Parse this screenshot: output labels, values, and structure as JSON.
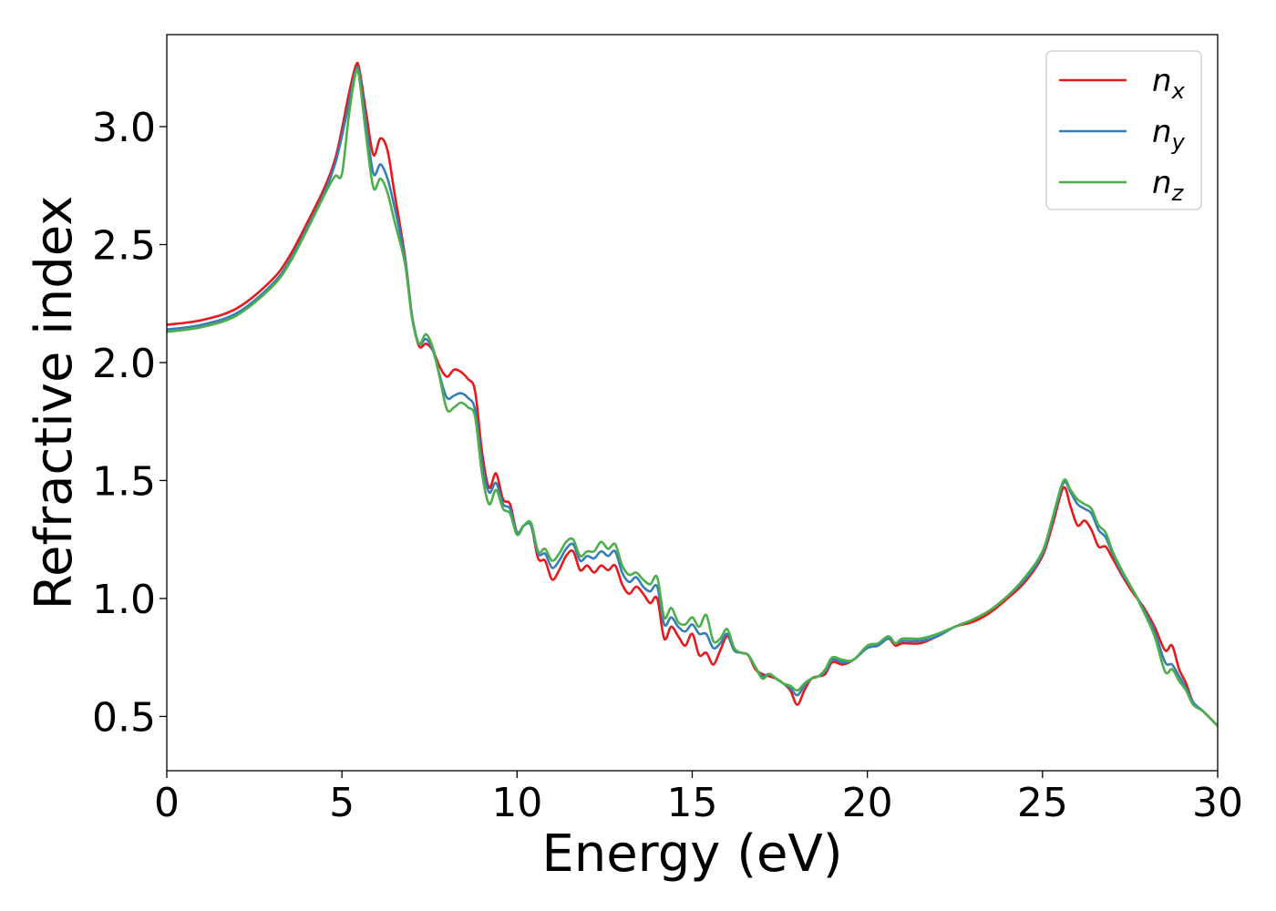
{
  "chart_data": {
    "type": "line",
    "xlabel": "Energy (eV)",
    "ylabel": "Refractive index",
    "xlim": [
      0,
      30
    ],
    "ylim": [
      0.27,
      3.39
    ],
    "xticks": [
      "0",
      "5",
      "10",
      "15",
      "20",
      "25",
      "30"
    ],
    "yticks": [
      "0.5",
      "1.0",
      "1.5",
      "2.0",
      "2.5",
      "3.0"
    ],
    "grid": false,
    "legend_position": "top-right",
    "series": [
      {
        "name": "n",
        "subscript": "x",
        "color": "#e41a1c",
        "x": [
          0,
          1,
          2,
          3,
          3.5,
          4,
          4.5,
          4.8,
          5.0,
          5.2,
          5.4,
          5.5,
          5.7,
          5.9,
          6.1,
          6.3,
          6.5,
          6.8,
          7.0,
          7.2,
          7.4,
          7.6,
          7.8,
          8.0,
          8.2,
          8.4,
          8.6,
          8.8,
          9.0,
          9.2,
          9.4,
          9.6,
          9.8,
          10.0,
          10.2,
          10.4,
          10.6,
          10.8,
          11.0,
          11.2,
          11.4,
          11.6,
          11.8,
          12.0,
          12.2,
          12.4,
          12.6,
          12.8,
          13.0,
          13.2,
          13.4,
          13.6,
          13.8,
          14.0,
          14.2,
          14.4,
          14.6,
          14.8,
          15.0,
          15.2,
          15.4,
          15.6,
          15.8,
          16.0,
          16.2,
          16.4,
          16.6,
          16.8,
          17.0,
          17.2,
          17.4,
          17.6,
          17.8,
          18.0,
          18.2,
          18.4,
          18.6,
          18.8,
          19.0,
          19.3,
          19.6,
          20.0,
          20.3,
          20.6,
          20.8,
          21.0,
          21.5,
          22.0,
          22.5,
          23.0,
          23.5,
          24.0,
          24.5,
          25.0,
          25.3,
          25.6,
          25.8,
          26.0,
          26.2,
          26.4,
          26.6,
          26.8,
          27.0,
          27.3,
          27.6,
          27.9,
          28.2,
          28.5,
          28.7,
          28.9,
          29.1,
          29.3,
          29.6,
          30.0
        ],
        "values": [
          2.16,
          2.18,
          2.23,
          2.35,
          2.45,
          2.59,
          2.74,
          2.86,
          2.99,
          3.14,
          3.26,
          3.24,
          3.05,
          2.88,
          2.95,
          2.9,
          2.72,
          2.45,
          2.2,
          2.07,
          2.08,
          2.05,
          1.98,
          1.94,
          1.97,
          1.96,
          1.93,
          1.88,
          1.62,
          1.47,
          1.53,
          1.42,
          1.4,
          1.28,
          1.31,
          1.31,
          1.17,
          1.16,
          1.08,
          1.12,
          1.18,
          1.2,
          1.12,
          1.14,
          1.11,
          1.14,
          1.12,
          1.14,
          1.06,
          1.02,
          1.05,
          1.02,
          0.98,
          1.0,
          0.83,
          0.88,
          0.84,
          0.8,
          0.85,
          0.76,
          0.77,
          0.72,
          0.78,
          0.84,
          0.78,
          0.77,
          0.76,
          0.7,
          0.68,
          0.67,
          0.66,
          0.64,
          0.61,
          0.55,
          0.61,
          0.66,
          0.67,
          0.68,
          0.73,
          0.72,
          0.74,
          0.79,
          0.8,
          0.83,
          0.8,
          0.81,
          0.81,
          0.84,
          0.88,
          0.9,
          0.94,
          1.0,
          1.07,
          1.18,
          1.32,
          1.47,
          1.39,
          1.31,
          1.33,
          1.29,
          1.22,
          1.22,
          1.17,
          1.09,
          1.02,
          0.96,
          0.88,
          0.78,
          0.8,
          0.7,
          0.64,
          0.56,
          0.52,
          0.46
        ]
      },
      {
        "name": "n",
        "subscript": "y",
        "color": "#377eb8",
        "x": [
          0,
          1,
          2,
          3,
          3.5,
          4,
          4.5,
          4.8,
          5.0,
          5.2,
          5.4,
          5.5,
          5.7,
          5.9,
          6.1,
          6.3,
          6.5,
          6.8,
          7.0,
          7.2,
          7.4,
          7.6,
          7.8,
          8.0,
          8.2,
          8.4,
          8.6,
          8.8,
          9.0,
          9.2,
          9.4,
          9.6,
          9.8,
          10.0,
          10.2,
          10.4,
          10.6,
          10.8,
          11.0,
          11.2,
          11.4,
          11.6,
          11.8,
          12.0,
          12.2,
          12.4,
          12.6,
          12.8,
          13.0,
          13.2,
          13.4,
          13.6,
          13.8,
          14.0,
          14.2,
          14.4,
          14.6,
          14.8,
          15.0,
          15.2,
          15.4,
          15.6,
          15.8,
          16.0,
          16.2,
          16.4,
          16.6,
          16.8,
          17.0,
          17.2,
          17.4,
          17.6,
          17.8,
          18.0,
          18.2,
          18.4,
          18.6,
          18.8,
          19.0,
          19.3,
          19.6,
          20.0,
          20.3,
          20.6,
          20.8,
          21.0,
          21.5,
          22.0,
          22.5,
          23.0,
          23.5,
          24.0,
          24.5,
          25.0,
          25.3,
          25.6,
          25.8,
          26.0,
          26.2,
          26.4,
          26.6,
          26.8,
          27.0,
          27.3,
          27.6,
          27.9,
          28.2,
          28.5,
          28.7,
          28.9,
          29.1,
          29.3,
          29.6,
          30.0
        ],
        "values": [
          2.14,
          2.16,
          2.21,
          2.33,
          2.43,
          2.57,
          2.72,
          2.84,
          2.96,
          3.1,
          3.24,
          3.22,
          3.0,
          2.8,
          2.84,
          2.78,
          2.66,
          2.44,
          2.2,
          2.08,
          2.1,
          2.05,
          1.94,
          1.85,
          1.86,
          1.87,
          1.85,
          1.8,
          1.57,
          1.45,
          1.49,
          1.4,
          1.38,
          1.28,
          1.31,
          1.31,
          1.19,
          1.19,
          1.13,
          1.16,
          1.21,
          1.23,
          1.16,
          1.18,
          1.17,
          1.2,
          1.18,
          1.2,
          1.11,
          1.07,
          1.09,
          1.05,
          1.03,
          1.05,
          0.89,
          0.92,
          0.88,
          0.86,
          0.89,
          0.85,
          0.85,
          0.79,
          0.81,
          0.85,
          0.78,
          0.77,
          0.76,
          0.71,
          0.67,
          0.68,
          0.66,
          0.64,
          0.62,
          0.59,
          0.63,
          0.66,
          0.67,
          0.69,
          0.74,
          0.73,
          0.74,
          0.79,
          0.8,
          0.83,
          0.81,
          0.82,
          0.82,
          0.84,
          0.88,
          0.91,
          0.95,
          1.01,
          1.08,
          1.19,
          1.34,
          1.49,
          1.45,
          1.4,
          1.38,
          1.36,
          1.29,
          1.26,
          1.19,
          1.1,
          1.03,
          0.95,
          0.86,
          0.73,
          0.72,
          0.67,
          0.62,
          0.56,
          0.52,
          0.46
        ]
      },
      {
        "name": "n",
        "subscript": "z",
        "color": "#4daf4a",
        "x": [
          0,
          1,
          2,
          3,
          3.5,
          4,
          4.5,
          4.8,
          5.0,
          5.2,
          5.4,
          5.5,
          5.7,
          5.9,
          6.1,
          6.3,
          6.5,
          6.8,
          7.0,
          7.2,
          7.4,
          7.6,
          7.8,
          8.0,
          8.2,
          8.4,
          8.6,
          8.8,
          9.0,
          9.2,
          9.4,
          9.6,
          9.8,
          10.0,
          10.2,
          10.4,
          10.6,
          10.8,
          11.0,
          11.2,
          11.4,
          11.6,
          11.8,
          12.0,
          12.2,
          12.4,
          12.6,
          12.8,
          13.0,
          13.2,
          13.4,
          13.6,
          13.8,
          14.0,
          14.2,
          14.4,
          14.6,
          14.8,
          15.0,
          15.2,
          15.4,
          15.6,
          15.8,
          16.0,
          16.2,
          16.4,
          16.6,
          16.8,
          17.0,
          17.2,
          17.4,
          17.6,
          17.8,
          18.0,
          18.2,
          18.4,
          18.6,
          18.8,
          19.0,
          19.3,
          19.6,
          20.0,
          20.3,
          20.6,
          20.8,
          21.0,
          21.5,
          22.0,
          22.5,
          23.0,
          23.5,
          24.0,
          24.5,
          25.0,
          25.3,
          25.6,
          25.8,
          26.0,
          26.2,
          26.4,
          26.6,
          26.8,
          27.0,
          27.3,
          27.6,
          27.9,
          28.2,
          28.5,
          28.7,
          28.9,
          29.1,
          29.3,
          29.6,
          30.0
        ],
        "values": [
          2.13,
          2.15,
          2.2,
          2.32,
          2.42,
          2.56,
          2.71,
          2.79,
          2.8,
          3.05,
          3.23,
          3.2,
          2.95,
          2.74,
          2.78,
          2.72,
          2.6,
          2.42,
          2.19,
          2.08,
          2.12,
          2.06,
          1.93,
          1.8,
          1.81,
          1.83,
          1.81,
          1.77,
          1.53,
          1.4,
          1.46,
          1.38,
          1.36,
          1.27,
          1.31,
          1.32,
          1.2,
          1.21,
          1.16,
          1.19,
          1.24,
          1.25,
          1.18,
          1.2,
          1.2,
          1.24,
          1.21,
          1.23,
          1.14,
          1.1,
          1.11,
          1.08,
          1.06,
          1.09,
          0.92,
          0.96,
          0.9,
          0.89,
          0.92,
          0.88,
          0.93,
          0.82,
          0.83,
          0.87,
          0.79,
          0.77,
          0.76,
          0.71,
          0.66,
          0.68,
          0.66,
          0.64,
          0.63,
          0.61,
          0.64,
          0.66,
          0.67,
          0.7,
          0.75,
          0.74,
          0.74,
          0.8,
          0.81,
          0.84,
          0.81,
          0.83,
          0.83,
          0.85,
          0.88,
          0.91,
          0.95,
          1.01,
          1.09,
          1.2,
          1.35,
          1.5,
          1.46,
          1.42,
          1.4,
          1.38,
          1.31,
          1.28,
          1.2,
          1.11,
          1.03,
          0.94,
          0.84,
          0.69,
          0.7,
          0.65,
          0.61,
          0.55,
          0.52,
          0.46
        ]
      }
    ]
  }
}
